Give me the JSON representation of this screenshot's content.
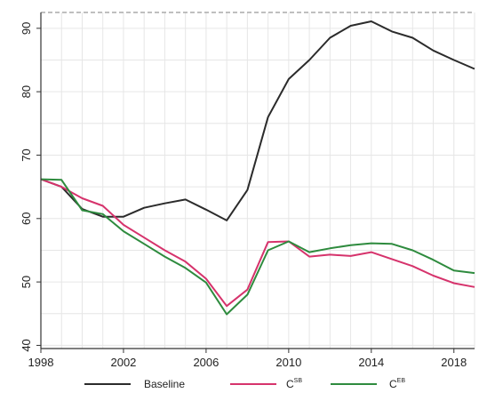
{
  "chart_data": {
    "type": "line",
    "x": [
      1998,
      1999,
      2000,
      2001,
      2002,
      2003,
      2004,
      2005,
      2006,
      2007,
      2008,
      2009,
      2010,
      2011,
      2012,
      2013,
      2014,
      2015,
      2016,
      2017,
      2018,
      2019
    ],
    "series": [
      {
        "name": "Baseline",
        "color": "#2b2b2b",
        "values": [
          66.2,
          65.0,
          61.5,
          60.3,
          60.3,
          61.7,
          62.4,
          63.0,
          61.4,
          59.7,
          64.5,
          76.0,
          82.0,
          85.0,
          88.5,
          90.4,
          91.1,
          89.5,
          88.5,
          86.5,
          85.0,
          83.6
        ]
      },
      {
        "name": "C",
        "name_sup": "SB",
        "color": "#d6336c",
        "values": [
          66.2,
          65.0,
          63.2,
          62.0,
          59.0,
          57.0,
          55.0,
          53.2,
          50.5,
          46.2,
          48.8,
          56.3,
          56.4,
          54.0,
          54.3,
          54.1,
          54.7,
          53.6,
          52.5,
          51.0,
          49.8,
          49.2
        ]
      },
      {
        "name": "C",
        "name_sup": "EB",
        "color": "#2e8b3e",
        "values": [
          66.2,
          66.1,
          61.3,
          60.7,
          58.0,
          56.0,
          54.0,
          52.2,
          49.9,
          44.9,
          48.0,
          55.0,
          56.4,
          54.7,
          55.3,
          55.8,
          56.1,
          56.0,
          55.0,
          53.5,
          51.8,
          51.4
        ]
      }
    ],
    "x_ticks": [
      "1998",
      "2002",
      "2006",
      "2010",
      "2014",
      "2018"
    ],
    "y_ticks": [
      "40",
      "50",
      "60",
      "70",
      "80",
      "90"
    ],
    "xlim": [
      1998,
      2019
    ],
    "ylim": [
      39.5,
      92.5
    ],
    "grid": true,
    "legend_placement": "bottom"
  }
}
